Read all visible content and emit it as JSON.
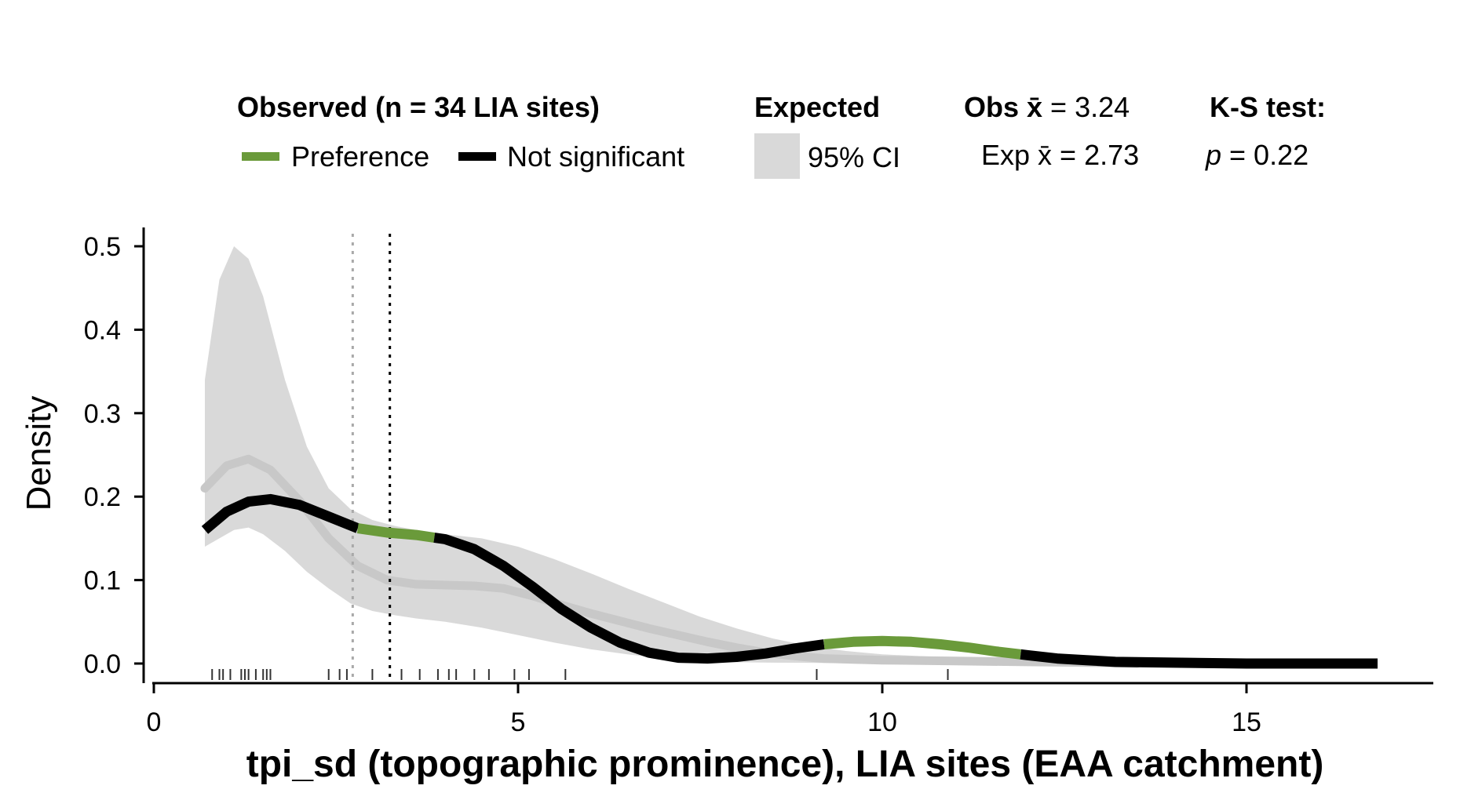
{
  "legend": {
    "observed_title": "Observed (n = 34 LIA sites)",
    "preference_label": "Preference",
    "not_significant_label": "Not significant",
    "expected_title": "Expected",
    "ci_label": "95% CI",
    "obs_mean_prefix": "Obs ",
    "obs_mean_symbol": "x̄",
    "obs_mean_value": " = 3.24",
    "exp_mean_prefix": "Exp ",
    "exp_mean_symbol": "x̄",
    "exp_mean_value": " = 2.73",
    "ks_title": "K-S test:",
    "ks_p_symbol": "p",
    "ks_p_value": " = 0.22"
  },
  "colors": {
    "preference": "#6a9a3a",
    "not_significant": "#000000",
    "ci_fill": "#d9d9d9",
    "expected_line": "#c8c8c8",
    "expected_mean_line": "#a9a9a9",
    "observed_mean_line": "#000000"
  },
  "chart_data": {
    "type": "line",
    "title": "",
    "xlabel": "tpi_sd (topographic prominence), LIA sites (EAA catchment)",
    "ylabel": "Density",
    "xlim": [
      0,
      17.5
    ],
    "ylim": [
      0,
      0.52
    ],
    "x_ticks": [
      0,
      5,
      10,
      15
    ],
    "x_tick_labels": [
      "0",
      "5",
      "10",
      "15"
    ],
    "y_ticks": [
      0,
      0.1,
      0.2,
      0.3,
      0.4,
      0.5
    ],
    "y_tick_labels": [
      "0.0",
      "0.1",
      "0.2",
      "0.3",
      "0.4",
      "0.5"
    ],
    "grid": false,
    "legend_position": "top",
    "observed_mean": 3.24,
    "expected_mean": 2.73,
    "ks_p": 0.22,
    "observed_density": {
      "x": [
        0.7,
        1.0,
        1.3,
        1.6,
        2.0,
        2.4,
        2.8,
        3.2,
        3.6,
        4.0,
        4.4,
        4.8,
        5.2,
        5.6,
        6.0,
        6.4,
        6.8,
        7.2,
        7.6,
        8.0,
        8.4,
        8.8,
        9.2,
        9.6,
        10.0,
        10.4,
        10.8,
        11.2,
        11.6,
        12.0,
        12.4,
        12.8,
        13.2,
        14.0,
        15.0,
        16.0,
        16.8
      ],
      "y": [
        0.16,
        0.182,
        0.194,
        0.197,
        0.19,
        0.176,
        0.162,
        0.157,
        0.154,
        0.149,
        0.137,
        0.117,
        0.092,
        0.065,
        0.043,
        0.025,
        0.013,
        0.007,
        0.006,
        0.008,
        0.012,
        0.018,
        0.023,
        0.026,
        0.027,
        0.026,
        0.023,
        0.019,
        0.014,
        0.01,
        0.006,
        0.004,
        0.002,
        0.001,
        0.0,
        0.0,
        0.0
      ],
      "preference_ranges": [
        [
          2.8,
          3.85
        ],
        [
          9.2,
          11.9
        ]
      ]
    },
    "expected_density": {
      "x": [
        0.7,
        1.0,
        1.3,
        1.6,
        2.0,
        2.4,
        2.8,
        3.2,
        3.6,
        4.0,
        4.4,
        4.8,
        5.2,
        5.6,
        6.0,
        6.4,
        6.8,
        7.2,
        7.6,
        8.0,
        8.4,
        8.8,
        9.2,
        9.6,
        10.0,
        11.0,
        12.0,
        13.0,
        13.5
      ],
      "y": [
        0.21,
        0.237,
        0.245,
        0.232,
        0.195,
        0.15,
        0.117,
        0.1,
        0.095,
        0.094,
        0.093,
        0.09,
        0.081,
        0.07,
        0.06,
        0.051,
        0.042,
        0.034,
        0.026,
        0.019,
        0.013,
        0.009,
        0.006,
        0.005,
        0.004,
        0.003,
        0.002,
        0.001,
        0.0
      ]
    },
    "ci_band": {
      "x": [
        0.7,
        0.9,
        1.1,
        1.3,
        1.5,
        1.8,
        2.1,
        2.4,
        2.7,
        3.0,
        3.3,
        3.6,
        4.0,
        4.5,
        5.0,
        5.5,
        6.0,
        6.5,
        7.0,
        7.5,
        8.0,
        8.5,
        9.0,
        9.5,
        10.0,
        11.0,
        12.0,
        13.0,
        14.0
      ],
      "upper": [
        0.34,
        0.46,
        0.5,
        0.485,
        0.44,
        0.34,
        0.26,
        0.21,
        0.185,
        0.172,
        0.165,
        0.16,
        0.155,
        0.15,
        0.14,
        0.125,
        0.108,
        0.09,
        0.073,
        0.056,
        0.042,
        0.03,
        0.021,
        0.015,
        0.011,
        0.007,
        0.005,
        0.003,
        0.001
      ],
      "lower": [
        0.14,
        0.15,
        0.16,
        0.163,
        0.155,
        0.135,
        0.11,
        0.09,
        0.072,
        0.063,
        0.058,
        0.054,
        0.05,
        0.043,
        0.034,
        0.025,
        0.017,
        0.011,
        0.006,
        0.003,
        0.0015,
        0.001,
        0.0008,
        0.0005,
        0.0,
        0.0,
        0.0,
        0.0,
        0.0
      ]
    },
    "rug": [
      0.8,
      0.9,
      0.95,
      1.05,
      1.2,
      1.25,
      1.3,
      1.4,
      1.5,
      1.55,
      1.6,
      2.4,
      2.55,
      2.65,
      3.0,
      3.4,
      3.65,
      3.9,
      4.05,
      4.15,
      4.4,
      4.6,
      4.95,
      5.15,
      5.65,
      9.1,
      10.9
    ]
  }
}
